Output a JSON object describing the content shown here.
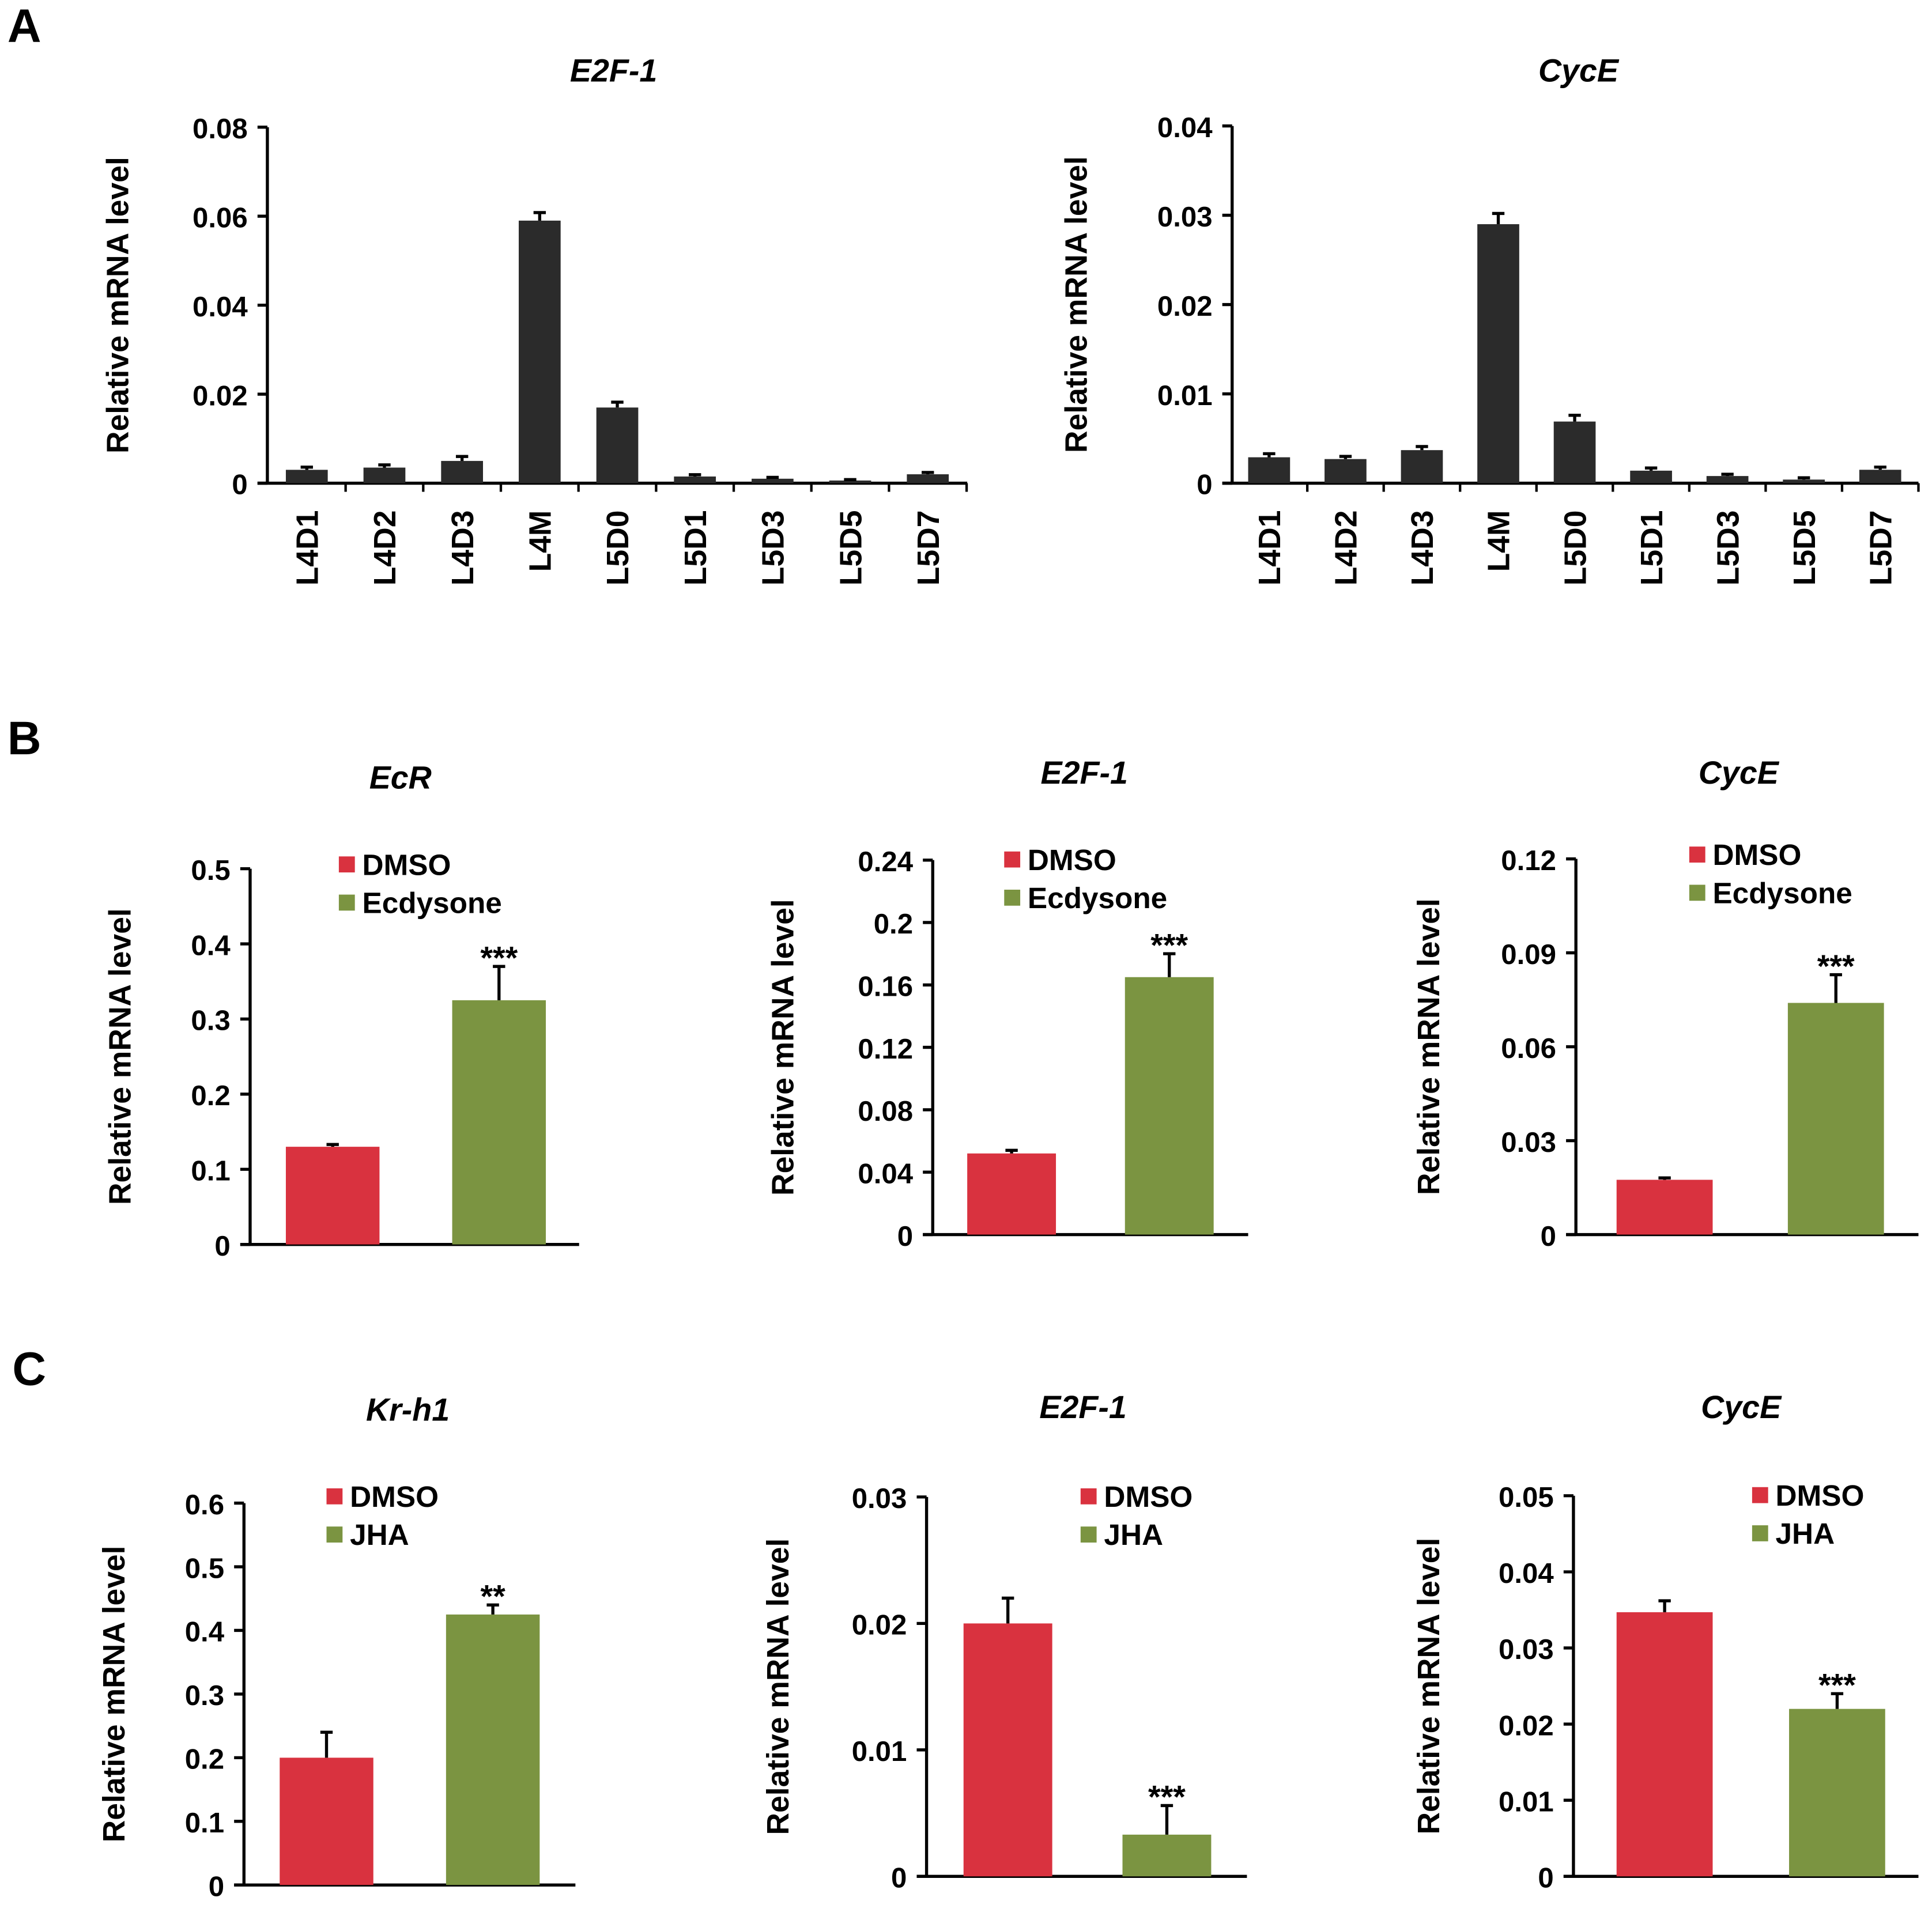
{
  "panels": [
    "A",
    "B",
    "C"
  ],
  "colors": {
    "dark": "#2b2b2b",
    "dmso": "#d9323f",
    "treat": "#7b9441"
  },
  "chart_data": [
    {
      "id": "A1",
      "type": "bar",
      "title": "E2F-1",
      "ylabel": "Relative mRNA level",
      "ylim": [
        0,
        0.08
      ],
      "yticks": [
        "0",
        "0.02",
        "0.04",
        "0.06",
        "0.08"
      ],
      "ytick_values": [
        0,
        0.02,
        0.04,
        0.06,
        0.08
      ],
      "categories": [
        "L4D1",
        "L4D2",
        "L4D3",
        "L4M",
        "L5D0",
        "L5D1",
        "L5D3",
        "L5D5",
        "L5D7"
      ],
      "values": [
        0.003,
        0.0035,
        0.005,
        0.059,
        0.017,
        0.0015,
        0.001,
        0.0006,
        0.002
      ],
      "errors": [
        0.0006,
        0.0006,
        0.001,
        0.0018,
        0.0012,
        0.0004,
        0.0003,
        0.0002,
        0.0004
      ]
    },
    {
      "id": "A2",
      "type": "bar",
      "title": "CycE",
      "ylabel": "Relative mRNA level",
      "ylim": [
        0,
        0.04
      ],
      "yticks": [
        "0",
        "0.01",
        "0.02",
        "0.03",
        "0.04"
      ],
      "ytick_values": [
        0,
        0.01,
        0.02,
        0.03,
        0.04
      ],
      "categories": [
        "L4D1",
        "L4D2",
        "L4D3",
        "L4M",
        "L5D0",
        "L5D1",
        "L5D3",
        "L5D5",
        "L5D7"
      ],
      "values": [
        0.0029,
        0.0027,
        0.0037,
        0.029,
        0.0069,
        0.0014,
        0.0008,
        0.0004,
        0.0015
      ],
      "errors": [
        0.0004,
        0.0003,
        0.0004,
        0.0012,
        0.0007,
        0.0003,
        0.0002,
        0.0002,
        0.0003
      ]
    },
    {
      "id": "B1",
      "type": "bar",
      "title": "EcR",
      "ylabel": "Relative mRNA level",
      "ylim": [
        0,
        0.5
      ],
      "yticks": [
        "0",
        "0.1",
        "0.2",
        "0.3",
        "0.4",
        "0.5"
      ],
      "ytick_values": [
        0,
        0.1,
        0.2,
        0.3,
        0.4,
        0.5
      ],
      "legend": [
        "DMSO",
        "Ecdysone"
      ],
      "values": [
        0.13,
        0.325
      ],
      "errors": [
        0.003,
        0.045
      ],
      "sig": "***"
    },
    {
      "id": "B2",
      "type": "bar",
      "title": "E2F-1",
      "ylabel": "Relative mRNA level",
      "ylim": [
        0,
        0.24
      ],
      "yticks": [
        "0",
        "0.04",
        "0.08",
        "0.12",
        "0.16",
        "0.2",
        "0.24"
      ],
      "ytick_values": [
        0,
        0.04,
        0.08,
        0.12,
        0.16,
        0.2,
        0.24
      ],
      "legend": [
        "DMSO",
        "Ecdysone"
      ],
      "values": [
        0.052,
        0.165
      ],
      "errors": [
        0.002,
        0.015
      ],
      "sig": "***"
    },
    {
      "id": "B3",
      "type": "bar",
      "title": "CycE",
      "ylabel": "Relative mRNA level",
      "ylim": [
        0,
        0.12
      ],
      "yticks": [
        "0",
        "0.03",
        "0.06",
        "0.09",
        "0.12"
      ],
      "ytick_values": [
        0,
        0.03,
        0.06,
        0.09,
        0.12
      ],
      "legend": [
        "DMSO",
        "Ecdysone"
      ],
      "values": [
        0.0175,
        0.074
      ],
      "errors": [
        0.0006,
        0.009
      ],
      "sig": "***"
    },
    {
      "id": "C1",
      "type": "bar",
      "title": "Kr-h1",
      "ylabel": "Relative mRNA level",
      "ylim": [
        0,
        0.6
      ],
      "yticks": [
        "0",
        "0.1",
        "0.2",
        "0.3",
        "0.4",
        "0.5",
        "0.6"
      ],
      "ytick_values": [
        0,
        0.1,
        0.2,
        0.3,
        0.4,
        0.5,
        0.6
      ],
      "legend": [
        "DMSO",
        "JHA"
      ],
      "values": [
        0.2,
        0.425
      ],
      "errors": [
        0.04,
        0.015
      ],
      "sig": "**"
    },
    {
      "id": "C2",
      "type": "bar",
      "title": "E2F-1",
      "ylabel": "Relative mRNA level",
      "ylim": [
        0,
        0.03
      ],
      "yticks": [
        "0",
        "0.01",
        "0.02",
        "0.03"
      ],
      "ytick_values": [
        0,
        0.01,
        0.02,
        0.03
      ],
      "legend": [
        "DMSO",
        "JHA"
      ],
      "values": [
        0.02,
        0.0033
      ],
      "errors": [
        0.002,
        0.0023
      ],
      "sig": "***"
    },
    {
      "id": "C3",
      "type": "bar",
      "title": "CycE",
      "ylabel": "Relative mRNA level",
      "ylim": [
        0,
        0.05
      ],
      "yticks": [
        "0",
        "0.01",
        "0.02",
        "0.03",
        "0.04",
        "0.05"
      ],
      "ytick_values": [
        0,
        0.01,
        0.02,
        0.03,
        0.04,
        0.05
      ],
      "legend": [
        "DMSO",
        "JHA"
      ],
      "values": [
        0.0347,
        0.022
      ],
      "errors": [
        0.0015,
        0.002
      ],
      "sig": "***"
    }
  ]
}
